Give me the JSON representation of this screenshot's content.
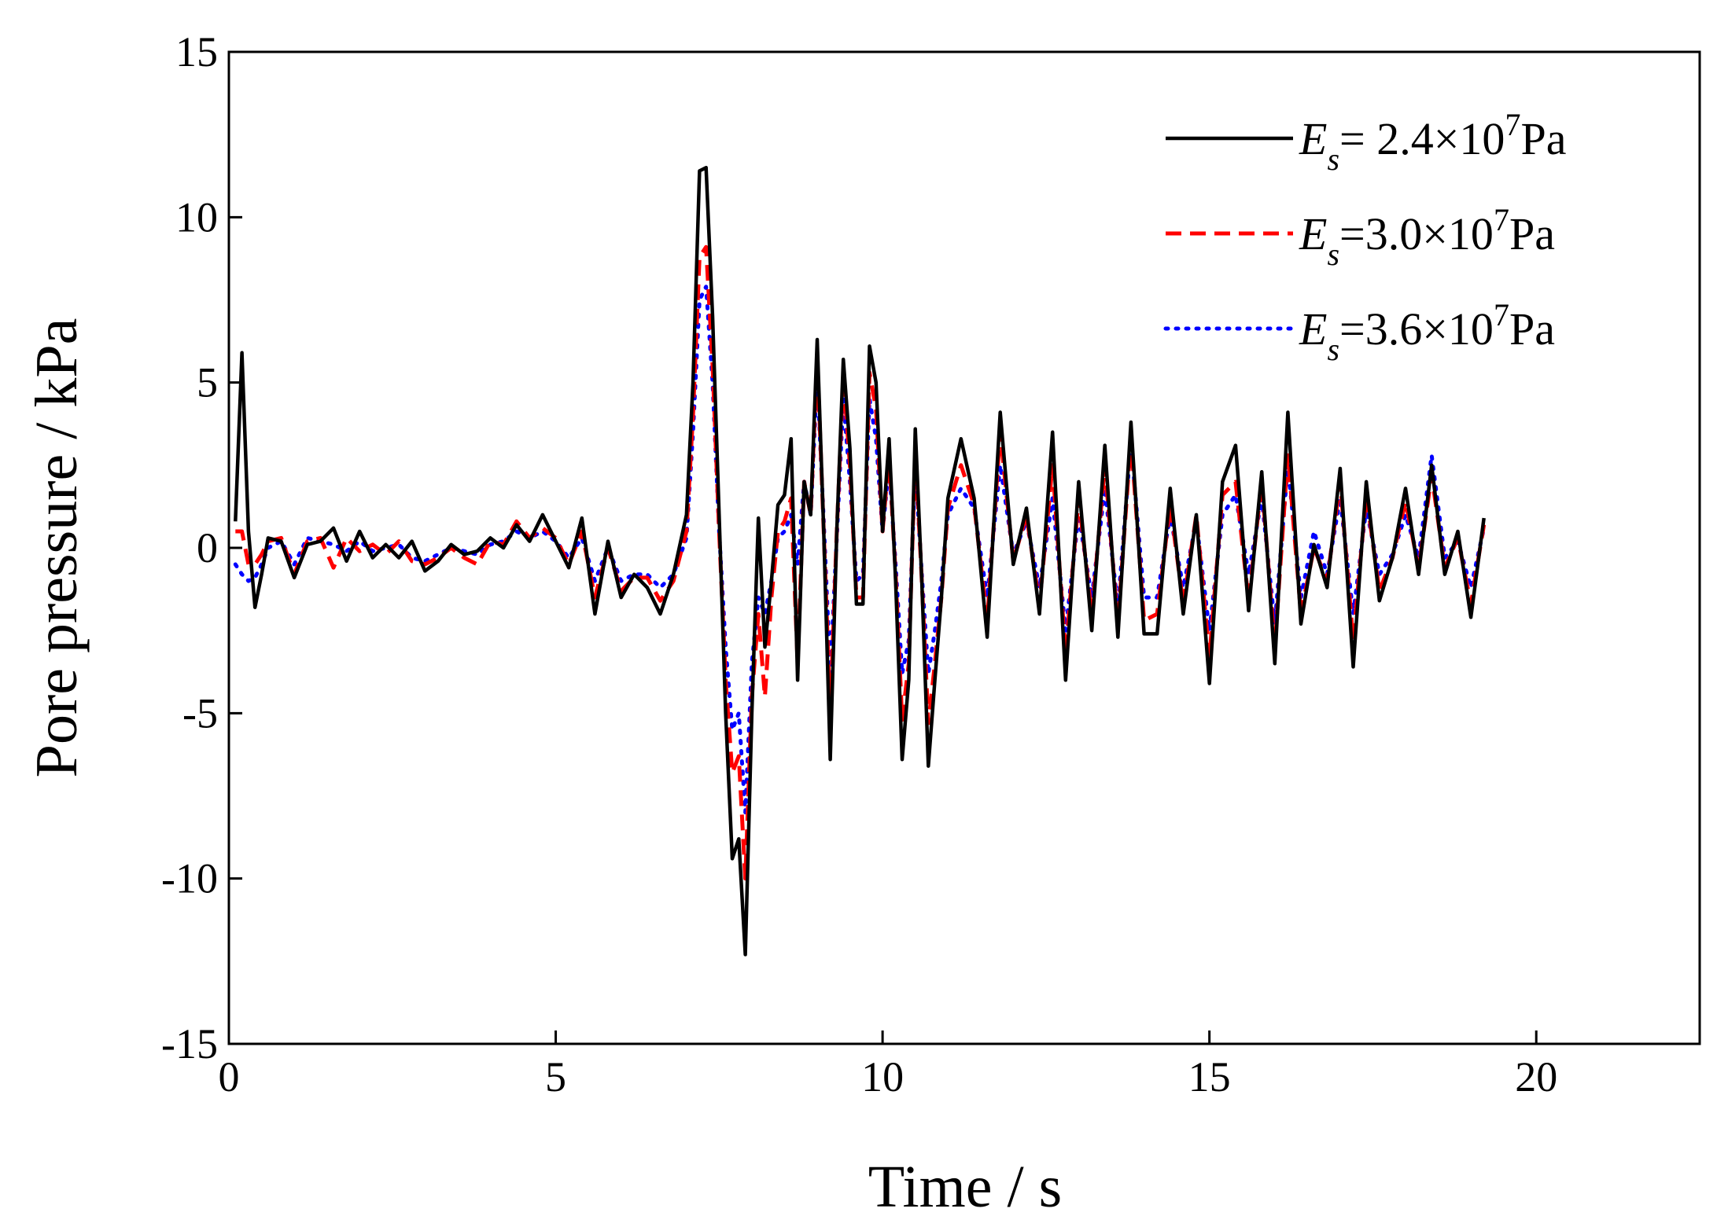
{
  "chart_data": {
    "type": "line",
    "xlabel": "Time / s",
    "ylabel": "Pore pressure / kPa",
    "xlim": [
      0,
      22.5
    ],
    "ylim": [
      -15,
      15
    ],
    "xticks": [
      0,
      5,
      10,
      15,
      20
    ],
    "yticks": [
      -15,
      -10,
      -5,
      0,
      5,
      10,
      15
    ],
    "legend": "upper right",
    "x": [
      0.1,
      0.2,
      0.3,
      0.4,
      0.5,
      0.6,
      0.8,
      1.0,
      1.2,
      1.4,
      1.6,
      1.8,
      2.0,
      2.2,
      2.4,
      2.6,
      2.8,
      3.0,
      3.2,
      3.4,
      3.6,
      3.8,
      4.0,
      4.2,
      4.4,
      4.6,
      4.8,
      5.0,
      5.2,
      5.4,
      5.6,
      5.8,
      6.0,
      6.2,
      6.4,
      6.6,
      6.8,
      7.0,
      7.1,
      7.2,
      7.3,
      7.4,
      7.5,
      7.6,
      7.7,
      7.8,
      7.9,
      8.0,
      8.1,
      8.2,
      8.3,
      8.4,
      8.5,
      8.6,
      8.7,
      8.8,
      8.9,
      9.0,
      9.1,
      9.2,
      9.3,
      9.4,
      9.5,
      9.6,
      9.7,
      9.8,
      9.9,
      10.0,
      10.1,
      10.2,
      10.3,
      10.4,
      10.5,
      10.6,
      10.7,
      10.8,
      10.9,
      11.0,
      11.2,
      11.4,
      11.6,
      11.8,
      12.0,
      12.2,
      12.4,
      12.6,
      12.8,
      13.0,
      13.2,
      13.4,
      13.6,
      13.8,
      14.0,
      14.2,
      14.4,
      14.6,
      14.8,
      15.0,
      15.2,
      15.4,
      15.6,
      15.8,
      16.0,
      16.2,
      16.4,
      16.6,
      16.8,
      17.0,
      17.2,
      17.4,
      17.6,
      17.8,
      18.0,
      18.2,
      18.4,
      18.6,
      18.8,
      19.0,
      19.2
    ],
    "series": [
      {
        "name": {
          "symbol": "E",
          "subscript": "s",
          "text": "= 2.4×10",
          "superscript": "7",
          "unit": "Pa"
        },
        "color": "#000000",
        "style": "solid",
        "values": [
          0.8,
          5.9,
          0.5,
          -1.8,
          -0.8,
          0.3,
          0.2,
          -0.9,
          0.1,
          0.2,
          0.6,
          -0.4,
          0.5,
          -0.3,
          0.1,
          -0.3,
          0.2,
          -0.7,
          -0.4,
          0.1,
          -0.2,
          -0.1,
          0.3,
          0.0,
          0.7,
          0.2,
          1.0,
          0.2,
          -0.6,
          0.9,
          -2.0,
          0.2,
          -1.5,
          -0.8,
          -1.2,
          -2.0,
          -0.8,
          1.0,
          5.0,
          11.4,
          11.5,
          7.0,
          1.0,
          -5.0,
          -9.4,
          -8.8,
          -12.3,
          -5.0,
          0.9,
          -3.0,
          -1.0,
          1.3,
          1.6,
          3.3,
          -4.0,
          2.0,
          1.0,
          6.3,
          0.5,
          -6.4,
          0.5,
          5.7,
          3.0,
          -1.7,
          -1.7,
          6.1,
          5.0,
          0.5,
          3.3,
          -1.0,
          -6.4,
          -4.0,
          3.6,
          -1.0,
          -6.6,
          -4.0,
          -1.5,
          1.5,
          3.3,
          1.5,
          -2.7,
          4.1,
          -0.5,
          1.2,
          -2.0,
          3.5,
          -4.0,
          2.0,
          -2.5,
          3.1,
          -2.7,
          3.8,
          -2.6,
          -2.6,
          1.8,
          -2.0,
          1.0,
          -4.1,
          2.0,
          3.1,
          -1.9,
          2.3,
          -3.5,
          4.1,
          -2.3,
          0.1,
          -1.2,
          2.4,
          -3.6,
          2.0,
          -1.6,
          -0.3,
          1.8,
          -0.8,
          2.5,
          -0.8,
          0.5,
          -2.1,
          0.9
        ]
      },
      {
        "name": {
          "symbol": "E",
          "subscript": "s",
          "text": "=3.0×10",
          "superscript": "7",
          "unit": "Pa"
        },
        "color": "#ff0000",
        "style": "dashed",
        "values": [
          0.5,
          0.5,
          -0.5,
          -0.5,
          -0.2,
          0.2,
          0.3,
          -0.8,
          0.2,
          0.3,
          -0.6,
          0.3,
          -0.1,
          0.1,
          -0.2,
          0.2,
          -0.4,
          -0.5,
          -0.3,
          0.0,
          -0.3,
          -0.5,
          0.2,
          0.1,
          0.8,
          0.3,
          0.6,
          0.3,
          -0.5,
          0.5,
          -1.5,
          0.0,
          -1.3,
          -0.9,
          -0.9,
          -1.6,
          -1.0,
          0.5,
          4.0,
          8.8,
          9.1,
          5.5,
          0.5,
          -4.0,
          -6.8,
          -6.3,
          -10.0,
          -4.5,
          -2.0,
          -4.5,
          -1.5,
          0.5,
          0.8,
          1.5,
          -3.5,
          2.0,
          1.0,
          5.8,
          0.5,
          -5.0,
          0.5,
          5.2,
          2.5,
          -1.5,
          -1.5,
          5.3,
          4.2,
          0.5,
          2.8,
          -0.8,
          -5.2,
          -3.5,
          3.0,
          -1.0,
          -5.3,
          -3.5,
          -1.5,
          1.2,
          2.5,
          1.3,
          -2.2,
          3.5,
          -0.4,
          1.0,
          -1.7,
          2.5,
          -3.2,
          1.5,
          -2.0,
          2.5,
          -2.3,
          3.3,
          -2.2,
          -2.0,
          1.3,
          -1.7,
          1.0,
          -3.3,
          1.6,
          2.0,
          -1.6,
          2.0,
          -3.0,
          2.8,
          -2.0,
          0.0,
          -1.0,
          2.0,
          -2.8,
          1.6,
          -1.3,
          -0.3,
          1.4,
          -0.6,
          2.2,
          -0.6,
          0.3,
          -1.7,
          0.7
        ]
      },
      {
        "name": {
          "symbol": "E",
          "subscript": "s",
          "text": "=3.6×10",
          "superscript": "7",
          "unit": "Pa"
        },
        "color": "#0000ff",
        "style": "dotted",
        "values": [
          -0.5,
          -0.8,
          -1.0,
          -0.9,
          -0.5,
          0.0,
          0.2,
          -0.5,
          0.3,
          0.2,
          0.1,
          -0.1,
          0.2,
          -0.1,
          0.0,
          0.1,
          -0.3,
          -0.4,
          -0.2,
          0.0,
          -0.1,
          -0.2,
          0.1,
          0.2,
          0.5,
          0.3,
          0.5,
          0.2,
          -0.3,
          0.3,
          -1.0,
          0.0,
          -1.0,
          -0.8,
          -0.8,
          -1.2,
          -0.8,
          0.3,
          3.5,
          7.5,
          7.9,
          5.0,
          0.5,
          -3.0,
          -5.5,
          -5.0,
          -8.0,
          -3.5,
          -1.5,
          -2.0,
          -1.0,
          0.3,
          0.5,
          1.0,
          -0.5,
          2.0,
          1.0,
          5.2,
          0.8,
          -3.8,
          0.3,
          4.5,
          2.0,
          -1.0,
          -0.8,
          4.5,
          3.3,
          0.5,
          2.5,
          -0.5,
          -3.8,
          -2.8,
          2.5,
          -0.8,
          -3.8,
          -2.5,
          -1.0,
          1.0,
          1.8,
          1.2,
          -1.5,
          2.5,
          -0.2,
          0.8,
          -1.2,
          1.5,
          -2.5,
          1.0,
          -1.5,
          1.8,
          -1.8,
          3.2,
          -1.5,
          -1.5,
          1.0,
          -1.2,
          0.8,
          -2.5,
          1.0,
          1.6,
          -0.8,
          1.5,
          -2.3,
          2.5,
          -1.5,
          0.5,
          -0.8,
          1.5,
          -2.0,
          1.2,
          -0.8,
          -0.2,
          1.0,
          -0.3,
          2.8,
          -0.3,
          0.2,
          -1.2,
          0.6
        ]
      }
    ]
  }
}
